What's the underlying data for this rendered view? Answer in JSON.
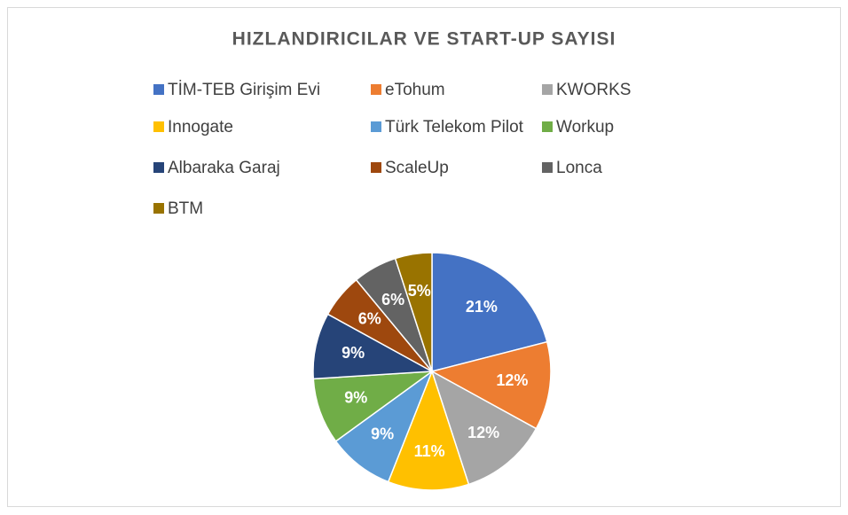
{
  "chart_data": {
    "type": "pie",
    "title": "HIZLANDIRICILAR VE START-UP SAYISI",
    "categories": [
      "TİM-TEB Girişim Evi",
      "eTohum",
      "KWORKS",
      "Innogate",
      "Türk Telekom Pilot",
      "Workup",
      "Albaraka Garaj",
      "ScaleUp",
      "Lonca",
      "BTM"
    ],
    "values": [
      21,
      12,
      12,
      11,
      9,
      9,
      9,
      6,
      6,
      5
    ],
    "value_labels": [
      "21%",
      "12%",
      "12%",
      "11%",
      "9%",
      "9%",
      "9%",
      "6%",
      "6%",
      "5%"
    ],
    "colors": [
      "#4472c4",
      "#ed7d31",
      "#a5a5a5",
      "#ffc000",
      "#5b9bd5",
      "#70ad47",
      "#264478",
      "#9e480e",
      "#636363",
      "#997300"
    ],
    "legend": "top"
  }
}
